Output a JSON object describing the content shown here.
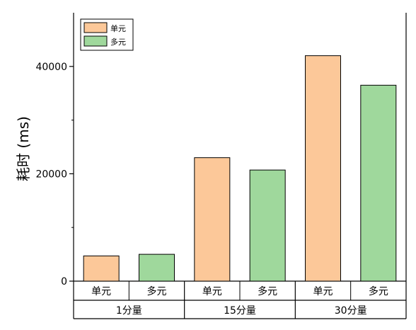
{
  "chart_data": {
    "type": "bar",
    "ylabel": "耗时 (ms)",
    "ylim": [
      0,
      50000
    ],
    "yticks": [
      0,
      20000,
      40000
    ],
    "groups": [
      {
        "label": "1分量",
        "categories": [
          "单元",
          "多元"
        ],
        "values": [
          4700,
          5000
        ]
      },
      {
        "label": "15分量",
        "categories": [
          "单元",
          "多元"
        ],
        "values": [
          23000,
          20700
        ]
      },
      {
        "label": "30分量",
        "categories": [
          "单元",
          "多元"
        ],
        "values": [
          42000,
          36500
        ]
      }
    ],
    "series": [
      {
        "name": "单元",
        "color": "#fcc899"
      },
      {
        "name": "多元",
        "color": "#9fd89c"
      }
    ],
    "legend_position": "top-left",
    "grid": false
  }
}
